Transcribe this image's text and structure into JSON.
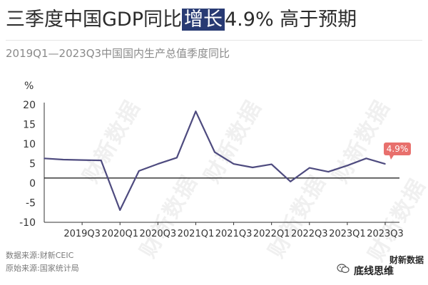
{
  "title": {
    "before": "三季度中国GDP同比",
    "highlight": "增长",
    "after": "4.9% 高于预期"
  },
  "subtitle": "2019Q1—2023Q3中国国内生产总值季度同比",
  "colors": {
    "line": "#4e4b7f",
    "reference_line": "#111111",
    "axis": "#333333",
    "callout": "#e8706d",
    "highlight_bg": "#283a73"
  },
  "chart_data": {
    "type": "line",
    "ylabel": "%",
    "ylim": [
      -10,
      20
    ],
    "yticks": [
      "20",
      "15",
      "10",
      "5",
      "0",
      "-5",
      "-10"
    ],
    "ytick_values": [
      20,
      15,
      10,
      5,
      0,
      -5,
      -10
    ],
    "xtick_labels": [
      "2019Q3",
      "2020Q1",
      "2020Q3",
      "2021Q1",
      "2021Q3",
      "2022Q1",
      "2022Q3",
      "2023Q1",
      "2023Q3"
    ],
    "x": [
      "2019Q1",
      "2019Q2",
      "2019Q3",
      "2019Q4",
      "2020Q1",
      "2020Q2",
      "2020Q3",
      "2020Q4",
      "2021Q1",
      "2021Q2",
      "2021Q3",
      "2021Q4",
      "2022Q1",
      "2022Q2",
      "2022Q3",
      "2022Q4",
      "2023Q1",
      "2023Q2",
      "2023Q3"
    ],
    "series": [
      {
        "values": [
          6.3,
          6.0,
          5.9,
          5.8,
          -6.9,
          3.1,
          4.9,
          6.5,
          18.3,
          7.9,
          4.9,
          4.0,
          4.8,
          0.4,
          3.9,
          2.9,
          4.5,
          6.3,
          4.9
        ]
      }
    ],
    "reference_line_value": 1.3,
    "annotation": "4.9%",
    "grid": false
  },
  "footnotes": {
    "data_source": "数据来源:财新CEIC",
    "original_source": "原始来源:国家统计局"
  },
  "watermark": "财新数据",
  "brand": {
    "small_logo": "财新数据",
    "wechat_name": "底线思维"
  }
}
